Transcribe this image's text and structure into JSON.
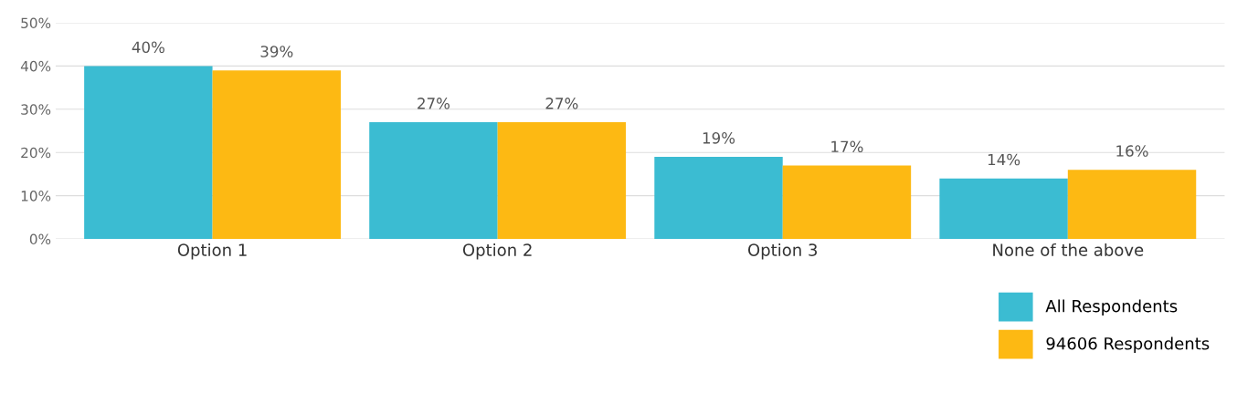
{
  "chart_data": {
    "type": "bar",
    "categories": [
      "Option 1",
      "Option 2",
      "Option 3",
      "None of the above"
    ],
    "series": [
      {
        "name": "All Respondents",
        "color": "#3bbcd2",
        "values": [
          40,
          27,
          19,
          14
        ]
      },
      {
        "name": "94606 Respondents",
        "color": "#fdb913",
        "values": [
          39,
          27,
          17,
          16
        ]
      }
    ],
    "value_labels": [
      [
        "40%",
        "27%",
        "19%",
        "14%"
      ],
      [
        "39%",
        "27%",
        "17%",
        "16%"
      ]
    ],
    "ylim": [
      0,
      50
    ],
    "yticks": [
      {
        "value": 0,
        "label": "0%"
      },
      {
        "value": 10,
        "label": "10%"
      },
      {
        "value": 20,
        "label": "20%"
      },
      {
        "value": 30,
        "label": "30%"
      },
      {
        "value": 40,
        "label": "40%"
      },
      {
        "value": 50,
        "label": "50%"
      }
    ],
    "grid": "y",
    "legend": "bottom right"
  }
}
